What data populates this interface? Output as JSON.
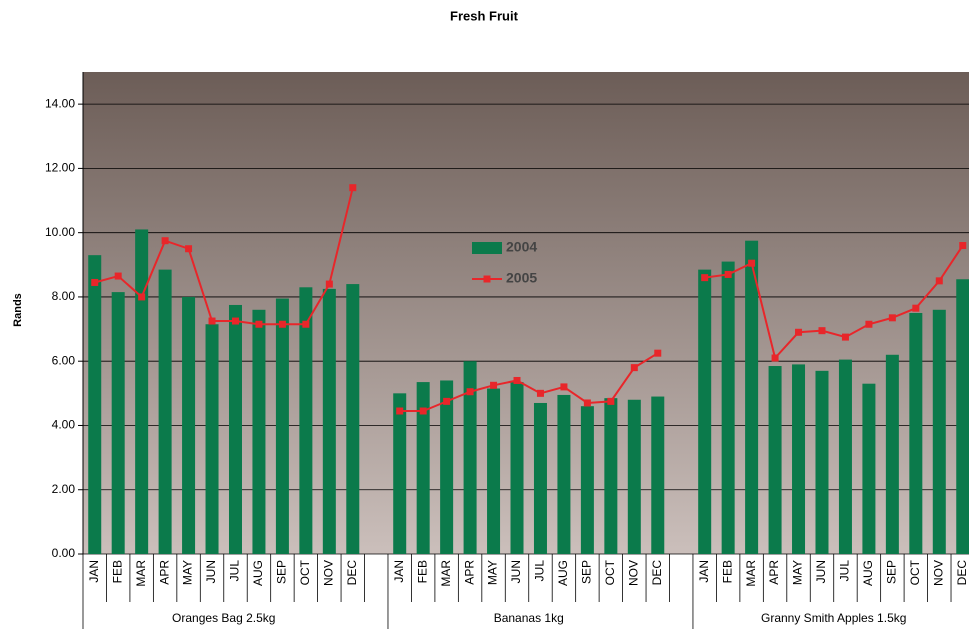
{
  "chart_data": {
    "type": "bar_line",
    "title": "Fresh Fruit",
    "y_label": "Rands",
    "groups": [
      "Oranges Bag 2.5kg",
      "Bananas 1kg",
      "Granny Smith Apples 1.5kg"
    ],
    "categories": [
      "JAN",
      "FEB",
      "MAR",
      "APR",
      "MAY",
      "JUN",
      "JUL",
      "AUG",
      "SEP",
      "OCT",
      "NOV",
      "DEC",
      "JAN",
      "FEB",
      "MAR",
      "APR",
      "MAY",
      "JUN",
      "JUL",
      "AUG",
      "SEP",
      "OCT",
      "NOV",
      "DEC",
      "JAN",
      "FEB",
      "MAR",
      "APR",
      "MAY",
      "JUN",
      "JUL",
      "AUG",
      "SEP",
      "OCT",
      "NOV",
      "DEC"
    ],
    "series": [
      {
        "name": "2004",
        "kind": "bar",
        "color": "#0b7a4b",
        "values": [
          9.3,
          8.15,
          10.1,
          8.85,
          8.0,
          7.15,
          7.75,
          7.6,
          7.95,
          8.3,
          8.25,
          8.4,
          5.0,
          5.35,
          5.4,
          6.0,
          5.15,
          5.35,
          4.7,
          4.95,
          4.6,
          4.85,
          4.8,
          4.9,
          8.85,
          9.1,
          9.75,
          5.85,
          5.9,
          5.7,
          6.05,
          5.3,
          6.2,
          7.5,
          7.6,
          8.55
        ]
      },
      {
        "name": "2005",
        "kind": "line",
        "color": "#e8262a",
        "values": [
          8.45,
          8.65,
          8.0,
          9.75,
          9.5,
          7.25,
          7.25,
          7.15,
          7.15,
          7.15,
          8.4,
          11.4,
          4.45,
          4.45,
          4.75,
          5.05,
          5.25,
          5.4,
          5.0,
          5.2,
          4.7,
          4.75,
          5.8,
          6.25,
          8.6,
          8.7,
          9.05,
          6.1,
          6.9,
          6.95,
          6.75,
          7.15,
          7.35,
          7.65,
          8.5,
          9.6
        ]
      }
    ],
    "ylim": [
      0,
      15
    ],
    "yticks": [
      {
        "value": 0,
        "label": "0.00"
      },
      {
        "value": 2,
        "label": "2.00"
      },
      {
        "value": 4,
        "label": "4.00"
      },
      {
        "value": 6,
        "label": "6.00"
      },
      {
        "value": 8,
        "label": "8.00"
      },
      {
        "value": 10,
        "label": "10.00"
      },
      {
        "value": 12,
        "label": "12.00"
      },
      {
        "value": 14,
        "label": "14.00"
      }
    ],
    "grid": true,
    "legend": "center"
  }
}
